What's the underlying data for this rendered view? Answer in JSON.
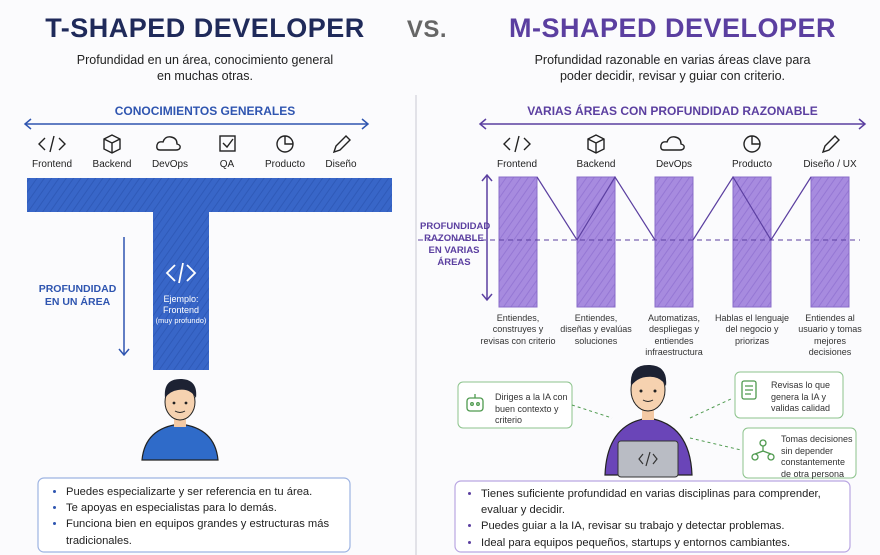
{
  "left": {
    "title": "T-SHAPED DEVELOPER",
    "subtitle": "Profundidad en un área, conocimiento general en muchas otras.",
    "breadth_label": "CONOCIMIENTOS GENERALES",
    "areas": [
      "Frontend",
      "Backend",
      "DevOps",
      "QA",
      "Producto",
      "Diseño"
    ],
    "depth_label": "PROFUNDIDAD EN UN ÁREA",
    "example": [
      "Ejemplo:",
      "Frontend",
      "(muy profundo)"
    ],
    "bullets": [
      "Puedes especializarte y ser referencia en tu área.",
      "Te apoyas en especialistas para lo demás.",
      "Funciona bien en equipos grandes y estructuras más tradicionales."
    ]
  },
  "vs": "VS.",
  "right": {
    "title": "M-SHAPED DEVELOPER",
    "subtitle": "Profundidad razonable en varias áreas clave para poder decidir, revisar y guiar con criterio.",
    "breadth_label": "VARIAS ÁREAS CON PROFUNDIDAD RAZONABLE",
    "areas": [
      "Frontend",
      "Backend",
      "DevOps",
      "Producto",
      "Diseño / UX"
    ],
    "depth_label": "PROFUNDIDAD RAZONABLE EN VARIAS ÁREAS",
    "descriptions": [
      "Entiendes, construyes y revisas con criterio",
      "Entiendes, diseñas y evalúas soluciones",
      "Automatizas, despliegas y entiendes infraestructura",
      "Hablas el lenguaje del negocio y priorizas",
      "Entiendes al usuario y tomas mejores decisiones"
    ],
    "callouts": [
      "Diriges a la IA con buen contexto y criterio",
      "Revisas lo que genera la IA y validas calidad",
      "Tomas decisiones sin depender constantemente de otra persona"
    ],
    "bullets": [
      "Tienes suficiente profundidad en varias disciplinas para comprender, evaluar y decidir.",
      "Puedes guiar a la IA, revisar su trabajo y detectar problemas.",
      "Ideal para equipos pequeños, startups y entornos cambiantes."
    ]
  }
}
